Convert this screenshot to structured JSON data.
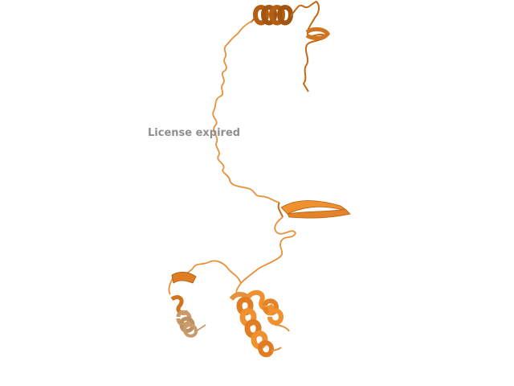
{
  "overlay": {
    "watermark_text": "License expired"
  },
  "colors": {
    "background": "#ffffff",
    "ribbon_main": "#f0902e",
    "ribbon_dark": "#b45f12",
    "ribbon_light": "#f7b46b",
    "ribbon_faded": "#c99a6a",
    "watermark": "#8f8f8f"
  }
}
